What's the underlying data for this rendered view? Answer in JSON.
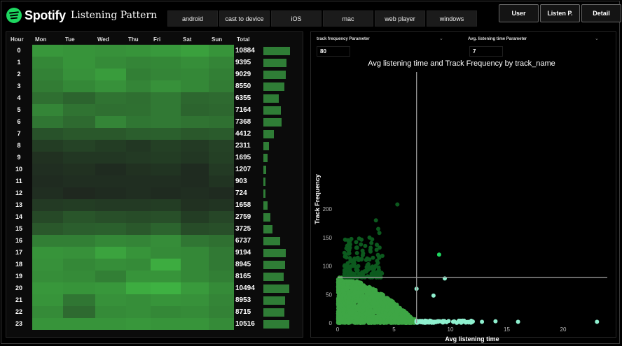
{
  "brand": {
    "name": "Spotify",
    "accent": "#1ed760"
  },
  "page_title": "Listening Pattern",
  "platform_tabs": [
    "android",
    "cast to device",
    "iOS",
    "mac",
    "web player",
    "windows"
  ],
  "nav_buttons": [
    "User",
    "Listen P.",
    "Detail"
  ],
  "heatmap": {
    "headers": {
      "hour": "Hour",
      "days": [
        "Mon",
        "Tue",
        "Wed",
        "Thu",
        "Fri",
        "Sat",
        "Sun"
      ],
      "total": "Total"
    },
    "hours": [
      "0",
      "1",
      "2",
      "3",
      "4",
      "5",
      "6",
      "7",
      "8",
      "9",
      "10",
      "11",
      "12",
      "13",
      "14",
      "15",
      "16",
      "17",
      "18",
      "19",
      "20",
      "21",
      "22",
      "23"
    ],
    "totals": [
      "10884",
      "9395",
      "9029",
      "8550",
      "6355",
      "7164",
      "7368",
      "4412",
      "2311",
      "1695",
      "1207",
      "903",
      "724",
      "1658",
      "2759",
      "3725",
      "6737",
      "9194",
      "8945",
      "8165",
      "10494",
      "8953",
      "8715",
      "10516"
    ],
    "total_values": [
      10884,
      9395,
      9029,
      8550,
      6355,
      7164,
      7368,
      4412,
      2311,
      1695,
      1207,
      903,
      724,
      1658,
      2759,
      3725,
      6737,
      9194,
      8945,
      8165,
      10494,
      8953,
      8715,
      10516
    ],
    "intensity": [
      [
        0.82,
        0.8,
        0.78,
        0.8,
        0.83,
        0.88,
        0.8
      ],
      [
        0.72,
        0.8,
        0.74,
        0.7,
        0.72,
        0.76,
        0.7
      ],
      [
        0.68,
        0.78,
        0.85,
        0.66,
        0.7,
        0.72,
        0.66
      ],
      [
        0.64,
        0.72,
        0.78,
        0.7,
        0.78,
        0.72,
        0.64
      ],
      [
        0.55,
        0.48,
        0.58,
        0.55,
        0.62,
        0.5,
        0.52
      ],
      [
        0.7,
        0.58,
        0.55,
        0.56,
        0.62,
        0.48,
        0.5
      ],
      [
        0.6,
        0.52,
        0.7,
        0.6,
        0.62,
        0.58,
        0.56
      ],
      [
        0.36,
        0.4,
        0.4,
        0.44,
        0.45,
        0.4,
        0.42
      ],
      [
        0.22,
        0.26,
        0.22,
        0.18,
        0.24,
        0.2,
        0.25
      ],
      [
        0.14,
        0.18,
        0.18,
        0.2,
        0.22,
        0.18,
        0.24
      ],
      [
        0.12,
        0.14,
        0.1,
        0.14,
        0.16,
        0.1,
        0.2
      ],
      [
        0.1,
        0.12,
        0.12,
        0.12,
        0.12,
        0.1,
        0.16
      ],
      [
        0.12,
        0.08,
        0.1,
        0.12,
        0.1,
        0.12,
        0.1
      ],
      [
        0.2,
        0.22,
        0.2,
        0.2,
        0.22,
        0.14,
        0.16
      ],
      [
        0.3,
        0.38,
        0.34,
        0.32,
        0.34,
        0.22,
        0.28
      ],
      [
        0.4,
        0.44,
        0.45,
        0.4,
        0.48,
        0.32,
        0.34
      ],
      [
        0.66,
        0.66,
        0.72,
        0.7,
        0.75,
        0.6,
        0.56
      ],
      [
        0.8,
        0.78,
        0.9,
        0.8,
        0.74,
        0.72,
        0.62
      ],
      [
        0.78,
        0.72,
        0.76,
        0.74,
        0.96,
        0.72,
        0.62
      ],
      [
        0.76,
        0.74,
        0.66,
        0.8,
        0.8,
        0.72,
        0.66
      ],
      [
        0.82,
        0.8,
        0.82,
        0.96,
        0.99,
        0.84,
        0.74
      ],
      [
        0.8,
        0.6,
        0.78,
        0.76,
        0.8,
        0.78,
        0.7
      ],
      [
        0.74,
        0.52,
        0.74,
        0.76,
        0.72,
        0.74,
        0.68
      ],
      [
        0.8,
        0.8,
        0.8,
        0.82,
        0.8,
        0.8,
        0.74
      ]
    ]
  },
  "parameters": {
    "track_freq_label": "track frequency Parameter",
    "track_freq_value": "80",
    "listen_time_label": "Avg. listening time Parameter",
    "listen_time_value": "7"
  },
  "chart_data": {
    "type": "scatter",
    "title": "Avg listening time and Track Frequency by track_name",
    "xlabel": "Avg listening time",
    "ylabel": "Track Frequency",
    "xlim": [
      0,
      24
    ],
    "ylim": [
      0,
      220
    ],
    "xticks": [
      0,
      5,
      10,
      15,
      20
    ],
    "yticks": [
      0,
      50,
      100,
      150,
      200
    ],
    "thresholds": {
      "x": 7,
      "y": 80
    },
    "colors": {
      "main": "#3ea645",
      "high_freq": "#0c5a1e",
      "long_time": "#8ff0cf",
      "outlier": "#1ed760",
      "line": "#9a9a9a"
    },
    "notable_points": [
      {
        "x": 5.3,
        "y": 208
      },
      {
        "x": 3.4,
        "y": 180
      },
      {
        "x": 3.6,
        "y": 165
      },
      {
        "x": 3.7,
        "y": 158
      },
      {
        "x": 9.0,
        "y": 120
      },
      {
        "x": 9.5,
        "y": 78
      },
      {
        "x": 7.0,
        "y": 60
      },
      {
        "x": 8.5,
        "y": 48
      },
      {
        "x": 11.0,
        "y": 3
      },
      {
        "x": 12.8,
        "y": 2
      },
      {
        "x": 14.0,
        "y": 3
      },
      {
        "x": 16.0,
        "y": 2
      },
      {
        "x": 23.0,
        "y": 2
      }
    ]
  }
}
